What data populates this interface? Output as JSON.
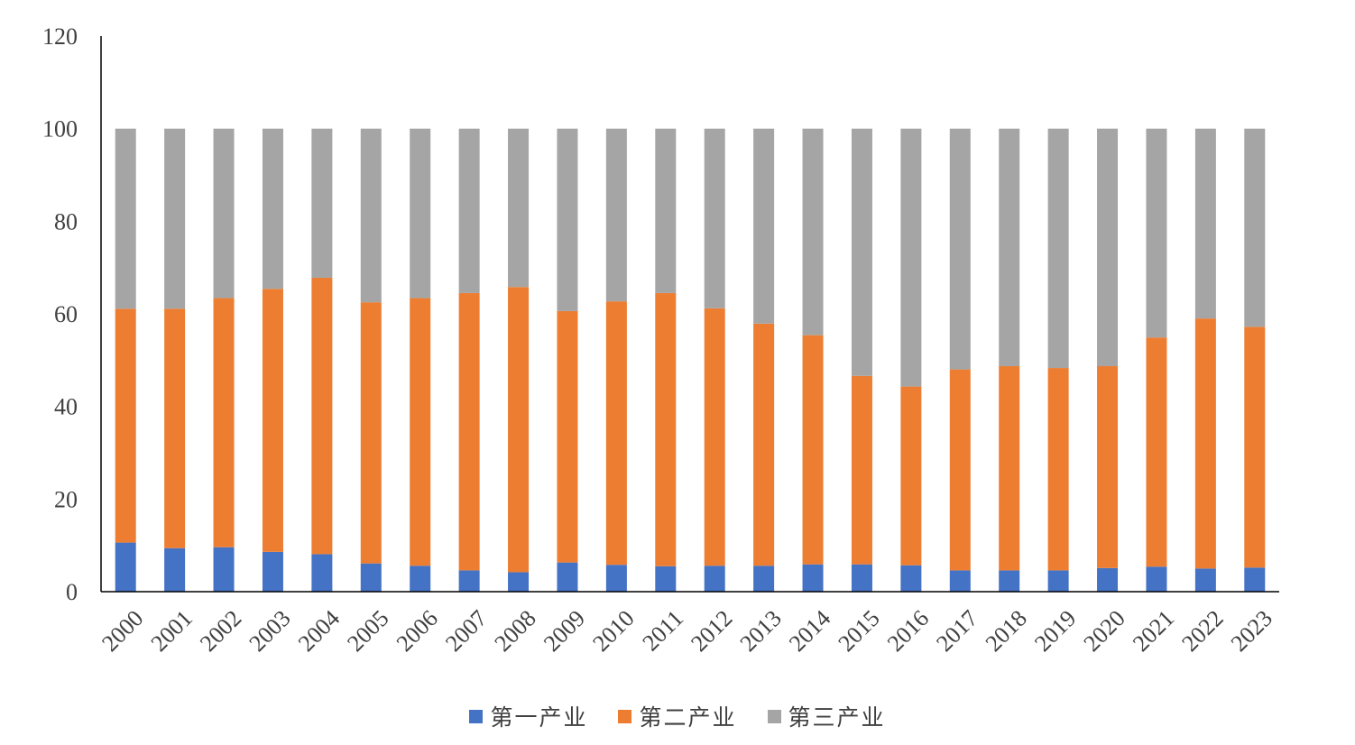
{
  "chart_data": {
    "type": "bar",
    "stacked": true,
    "categories": [
      "2000",
      "2001",
      "2002",
      "2003",
      "2004",
      "2005",
      "2006",
      "2007",
      "2008",
      "2009",
      "2010",
      "2011",
      "2012",
      "2013",
      "2014",
      "2015",
      "2016",
      "2017",
      "2018",
      "2019",
      "2020",
      "2021",
      "2022",
      "2023"
    ],
    "series": [
      {
        "name": "第一产业",
        "color": "#4472C4",
        "values": [
          10.6,
          9.4,
          9.6,
          8.6,
          8.1,
          6.1,
          5.6,
          4.6,
          4.2,
          6.3,
          5.8,
          5.5,
          5.6,
          5.6,
          5.9,
          5.9,
          5.7,
          4.6,
          4.6,
          4.6,
          5.1,
          5.4,
          5.0,
          5.2
        ]
      },
      {
        "name": "第二产业",
        "color": "#ED7D31",
        "values": [
          50.5,
          51.7,
          53.8,
          56.8,
          59.7,
          56.4,
          57.8,
          59.9,
          61.6,
          54.3,
          56.9,
          59.0,
          55.6,
          52.3,
          49.5,
          40.7,
          38.6,
          43.4,
          44.1,
          43.7,
          43.6,
          49.5,
          54.0,
          52.0
        ]
      },
      {
        "name": "第三产业",
        "color": "#A5A5A5",
        "values": [
          38.9,
          38.9,
          36.6,
          34.6,
          32.2,
          37.5,
          36.6,
          35.5,
          34.2,
          39.4,
          37.3,
          35.5,
          38.8,
          42.1,
          44.6,
          53.4,
          55.7,
          52.0,
          51.3,
          51.7,
          51.3,
          45.1,
          41.0,
          42.8
        ]
      }
    ],
    "yticks": [
      "0",
      "20",
      "40",
      "60",
      "80",
      "100",
      "120"
    ],
    "ylim": [
      0,
      120
    ],
    "legend_position": "bottom",
    "grid": false
  }
}
